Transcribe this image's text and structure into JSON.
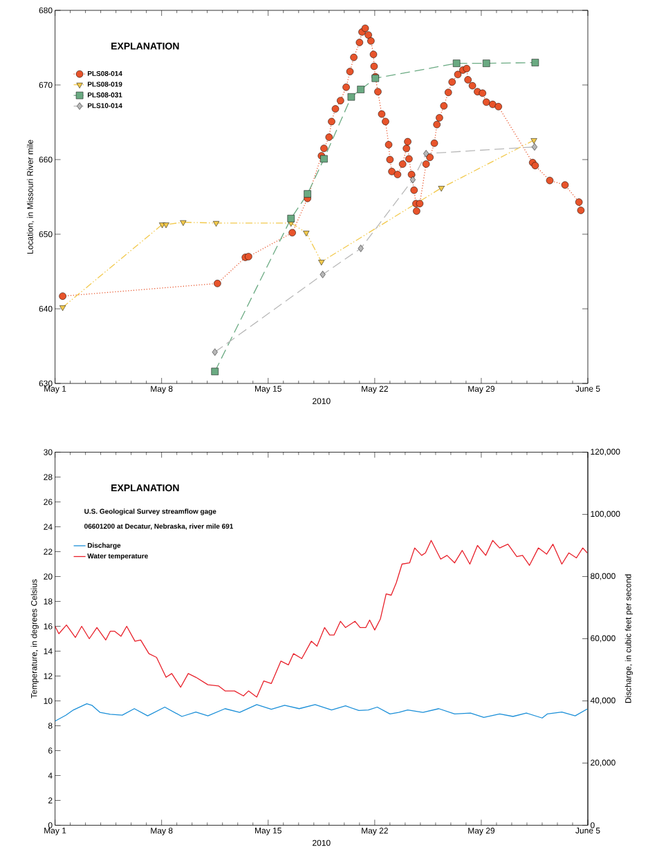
{
  "chart_data": [
    {
      "type": "line",
      "xlabel": "2010",
      "ylabel": "Location, in Missouri River mile",
      "legend_title": "EXPLANATION",
      "legend": "top left",
      "xlim": [
        "2010-05-01",
        "2010-06-05"
      ],
      "ylim": [
        630,
        680
      ],
      "yticks": [
        630,
        640,
        650,
        660,
        670,
        680
      ],
      "xticks": [
        {
          "value": "2010-05-01",
          "label": "May 1"
        },
        {
          "value": "2010-05-02",
          "label": null
        },
        {
          "value": "2010-05-03",
          "label": null
        },
        {
          "value": "2010-05-04",
          "label": null
        },
        {
          "value": "2010-05-05",
          "label": null
        },
        {
          "value": "2010-05-06",
          "label": null
        },
        {
          "value": "2010-05-07",
          "label": null
        },
        {
          "value": "2010-05-08",
          "label": "May 8"
        },
        {
          "value": "2010-05-09",
          "label": null
        },
        {
          "value": "2010-05-10",
          "label": null
        },
        {
          "value": "2010-05-11",
          "label": null
        },
        {
          "value": "2010-05-12",
          "label": null
        },
        {
          "value": "2010-05-13",
          "label": null
        },
        {
          "value": "2010-05-14",
          "label": null
        },
        {
          "value": "2010-05-15",
          "label": "May 15"
        },
        {
          "value": "2010-05-16",
          "label": null
        },
        {
          "value": "2010-05-17",
          "label": null
        },
        {
          "value": "2010-05-18",
          "label": null
        },
        {
          "value": "2010-05-19",
          "label": null
        },
        {
          "value": "2010-05-20",
          "label": null
        },
        {
          "value": "2010-05-21",
          "label": null
        },
        {
          "value": "2010-05-22",
          "label": "May 22"
        },
        {
          "value": "2010-05-23",
          "label": null
        },
        {
          "value": "2010-05-24",
          "label": null
        },
        {
          "value": "2010-05-25",
          "label": null
        },
        {
          "value": "2010-05-26",
          "label": null
        },
        {
          "value": "2010-05-27",
          "label": null
        },
        {
          "value": "2010-05-28",
          "label": null
        },
        {
          "value": "2010-05-29",
          "label": "May 29"
        },
        {
          "value": "2010-05-30",
          "label": null
        },
        {
          "value": "2010-05-31",
          "label": null
        },
        {
          "value": "2010-06-01",
          "label": null
        },
        {
          "value": "2010-06-02",
          "label": null
        },
        {
          "value": "2010-06-03",
          "label": null
        },
        {
          "value": "2010-06-04",
          "label": null
        },
        {
          "value": "2010-06-05",
          "label": "June 5"
        }
      ],
      "series": [
        {
          "name": "PLS08-014",
          "color": "#e8542b",
          "marker": "circle",
          "line_style": "dotted",
          "x": [
            "2010-05-01T12:00",
            "2010-05-11T16:00",
            "2010-05-13T12:00",
            "2010-05-13T17:00",
            "2010-05-16T14:00",
            "2010-05-17T14:00",
            "2010-05-18T12:00",
            "2010-05-18T16:00",
            "2010-05-19T00:00",
            "2010-05-19T04:00",
            "2010-05-19T10:00",
            "2010-05-19T18:00",
            "2010-05-20T03:00",
            "2010-05-20T09:00",
            "2010-05-20T15:00",
            "2010-05-21T00:00",
            "2010-05-21T04:00",
            "2010-05-21T09:00",
            "2010-05-21T14:00",
            "2010-05-21T18:00",
            "2010-05-21T22:00",
            "2010-05-21T23:00",
            "2010-05-22T01:00",
            "2010-05-22T05:00",
            "2010-05-22T11:00",
            "2010-05-22T17:00",
            "2010-05-22T22:00",
            "2010-05-23T00:00",
            "2010-05-23T03:00",
            "2010-05-23T12:00",
            "2010-05-23T20:00",
            "2010-05-24T02:00",
            "2010-05-24T04:00",
            "2010-05-24T06:00",
            "2010-05-24T10:00",
            "2010-05-24T14:00",
            "2010-05-24T17:00",
            "2010-05-24T18:00",
            "2010-05-24T23:00",
            "2010-05-25T09:00",
            "2010-05-25T15:00",
            "2010-05-25T22:00",
            "2010-05-26T02:00",
            "2010-05-26T06:00",
            "2010-05-26T13:00",
            "2010-05-26T20:00",
            "2010-05-27T02:00",
            "2010-05-27T11:00",
            "2010-05-27T19:00",
            "2010-05-28T01:00",
            "2010-05-28T03:00",
            "2010-05-28T10:00",
            "2010-05-28T18:00",
            "2010-05-29T02:00",
            "2010-05-29T08:00",
            "2010-05-29T18:00",
            "2010-05-30T03:00",
            "2010-06-01T09:00",
            "2010-06-01T13:00",
            "2010-06-02T12:00",
            "2010-06-03T12:00",
            "2010-06-04T10:00",
            "2010-06-04T13:00"
          ],
          "values": [
            641.7,
            643.4,
            646.9,
            647.0,
            650.2,
            654.8,
            660.5,
            661.5,
            663.0,
            665.1,
            666.8,
            667.9,
            669.7,
            671.8,
            673.7,
            675.7,
            677.1,
            677.6,
            676.7,
            675.9,
            674.1,
            672.5,
            671.1,
            669.1,
            666.1,
            665.1,
            662.0,
            660.0,
            658.4,
            658.0,
            659.4,
            661.5,
            662.4,
            660.1,
            658.0,
            655.9,
            654.1,
            653.1,
            654.1,
            659.4,
            660.3,
            662.2,
            664.7,
            665.6,
            667.2,
            669.0,
            670.4,
            671.4,
            672.0,
            672.2,
            670.7,
            669.9,
            669.1,
            668.9,
            667.7,
            667.4,
            667.1,
            659.6,
            659.2,
            657.2,
            656.6,
            654.3,
            653.2
          ]
        },
        {
          "name": "PLS08-019",
          "color": "#f2c94c",
          "marker": "triangle",
          "line_style": "dashdot",
          "x": [
            "2010-05-01T12:00",
            "2010-05-08T01:00",
            "2010-05-08T07:00",
            "2010-05-09T10:00",
            "2010-05-11T14:00",
            "2010-05-16T12:00",
            "2010-05-17T12:00",
            "2010-05-18T12:00",
            "2010-05-26T09:00",
            "2010-06-01T11:00"
          ],
          "values": [
            640.2,
            651.3,
            651.3,
            651.6,
            651.5,
            651.5,
            650.2,
            646.3,
            656.2,
            662.6
          ]
        },
        {
          "name": "PLS08-031",
          "color": "#6aaa82",
          "marker": "square",
          "line_style": "dashed",
          "x": [
            "2010-05-11T12:00",
            "2010-05-16T12:00",
            "2010-05-17T14:00",
            "2010-05-18T16:00",
            "2010-05-20T11:00",
            "2010-05-21T02:00",
            "2010-05-22T01:00",
            "2010-05-27T09:00",
            "2010-05-29T08:00",
            "2010-06-01T13:00"
          ],
          "values": [
            631.6,
            652.1,
            655.4,
            660.1,
            668.4,
            669.4,
            670.9,
            672.9,
            672.9,
            673.0
          ]
        },
        {
          "name": "PLS10-014",
          "color": "#b8b8b8",
          "marker": "diamond",
          "line_style": "dashed",
          "x": [
            "2010-05-11T12:00",
            "2010-05-18T14:00",
            "2010-05-21T02:00",
            "2010-05-24T12:00",
            "2010-05-25T09:00",
            "2010-06-01T12:00"
          ],
          "values": [
            634.2,
            644.6,
            648.1,
            657.3,
            660.8,
            661.7
          ]
        }
      ]
    },
    {
      "type": "line",
      "xlabel": "2010",
      "ylabel": "Temperature, in degrees Celsius",
      "y2label": "Discharge, in cubic feet per second",
      "legend_title": "EXPLANATION",
      "legend": "top left",
      "annotations": [
        "U.S. Geological Survey streamflow gage",
        "06601200 at Decatur, Nebraska, river mile 691"
      ],
      "xlim": [
        "2010-05-01",
        "2010-06-05"
      ],
      "ylim": [
        0,
        30
      ],
      "yticks": [
        0,
        2,
        4,
        6,
        8,
        10,
        12,
        14,
        16,
        18,
        20,
        22,
        24,
        26,
        28,
        30
      ],
      "y2lim": [
        0,
        120000
      ],
      "y2ticks": [
        0,
        {
          "value": 20000,
          "label": "20,000"
        },
        {
          "value": 40000,
          "label": "40,000"
        },
        {
          "value": 60000,
          "label": "60,000"
        },
        {
          "value": 80000,
          "label": "80,000"
        },
        {
          "value": 100000,
          "label": "100,000"
        },
        {
          "value": 120000,
          "label": "120,000"
        }
      ],
      "xticks": [
        {
          "value": "2010-05-01",
          "label": "May 1"
        },
        {
          "value": "2010-05-02",
          "label": null
        },
        {
          "value": "2010-05-03",
          "label": null
        },
        {
          "value": "2010-05-04",
          "label": null
        },
        {
          "value": "2010-05-05",
          "label": null
        },
        {
          "value": "2010-05-06",
          "label": null
        },
        {
          "value": "2010-05-07",
          "label": null
        },
        {
          "value": "2010-05-08",
          "label": "May 8"
        },
        {
          "value": "2010-05-09",
          "label": null
        },
        {
          "value": "2010-05-10",
          "label": null
        },
        {
          "value": "2010-05-11",
          "label": null
        },
        {
          "value": "2010-05-12",
          "label": null
        },
        {
          "value": "2010-05-13",
          "label": null
        },
        {
          "value": "2010-05-14",
          "label": null
        },
        {
          "value": "2010-05-15",
          "label": "May 15"
        },
        {
          "value": "2010-05-16",
          "label": null
        },
        {
          "value": "2010-05-17",
          "label": null
        },
        {
          "value": "2010-05-18",
          "label": null
        },
        {
          "value": "2010-05-19",
          "label": null
        },
        {
          "value": "2010-05-20",
          "label": null
        },
        {
          "value": "2010-05-21",
          "label": null
        },
        {
          "value": "2010-05-22",
          "label": "May 22"
        },
        {
          "value": "2010-05-23",
          "label": null
        },
        {
          "value": "2010-05-24",
          "label": null
        },
        {
          "value": "2010-05-25",
          "label": null
        },
        {
          "value": "2010-05-26",
          "label": null
        },
        {
          "value": "2010-05-27",
          "label": null
        },
        {
          "value": "2010-05-28",
          "label": null
        },
        {
          "value": "2010-05-29",
          "label": "May 29"
        },
        {
          "value": "2010-05-30",
          "label": null
        },
        {
          "value": "2010-05-31",
          "label": null
        },
        {
          "value": "2010-06-01",
          "label": null
        },
        {
          "value": "2010-06-02",
          "label": null
        },
        {
          "value": "2010-06-03",
          "label": null
        },
        {
          "value": "2010-06-04",
          "label": null
        },
        {
          "value": "2010-06-05",
          "label": "June 5"
        }
      ],
      "series": [
        {
          "name": "Discharge",
          "color": "#1b8fd8",
          "axis": "y2",
          "x": [
            "2010-05-01T00:00",
            "2010-05-01T17:00",
            "2010-05-02T05:00",
            "2010-05-03T02:00",
            "2010-05-03T10:00",
            "2010-05-03T23:00",
            "2010-05-04T15:00",
            "2010-05-05T10:00",
            "2010-05-06T05:00",
            "2010-05-07T02:00",
            "2010-05-08T05:00",
            "2010-05-09T08:00",
            "2010-05-10T06:00",
            "2010-05-11T01:00",
            "2010-05-12T04:00",
            "2010-05-13T03:00",
            "2010-05-14T06:00",
            "2010-05-15T05:00",
            "2010-05-16T02:00",
            "2010-05-17T01:00",
            "2010-05-18T02:00",
            "2010-05-19T04:00",
            "2010-05-20T02:00",
            "2010-05-20T23:00",
            "2010-05-21T14:00",
            "2010-05-22T04:00",
            "2010-05-23T00:00",
            "2010-05-23T14:00",
            "2010-05-24T04:00",
            "2010-05-25T04:00",
            "2010-05-26T05:00",
            "2010-05-27T06:00",
            "2010-05-28T07:00",
            "2010-05-29T04:00",
            "2010-05-30T05:00",
            "2010-05-31T02:00",
            "2010-05-31T23:00",
            "2010-06-02T00:00",
            "2010-06-02T08:00",
            "2010-06-03T07:00",
            "2010-06-04T04:00",
            "2010-06-04T23:00"
          ],
          "values": [
            33500,
            35400,
            37100,
            39100,
            38600,
            36300,
            35700,
            35400,
            37500,
            35200,
            38000,
            35000,
            36400,
            35200,
            37500,
            36300,
            38800,
            37300,
            38600,
            37500,
            38800,
            37100,
            38400,
            36900,
            37100,
            38000,
            35800,
            36300,
            37100,
            36300,
            37500,
            35800,
            36100,
            34700,
            35800,
            35000,
            36100,
            34500,
            35800,
            36400,
            35200,
            37400
          ]
        },
        {
          "name": "Water temperature",
          "color": "#e8202a",
          "x": [
            "2010-05-01T00:00",
            "2010-05-01T06:00",
            "2010-05-01T18:00",
            "2010-05-02T08:00",
            "2010-05-02T18:00",
            "2010-05-03T06:00",
            "2010-05-03T18:00",
            "2010-05-04T08:00",
            "2010-05-04T15:00",
            "2010-05-04T22:00",
            "2010-05-05T08:00",
            "2010-05-05T17:00",
            "2010-05-06T06:00",
            "2010-05-06T15:00",
            "2010-05-07T04:00",
            "2010-05-07T16:00",
            "2010-05-08T07:00",
            "2010-05-08T16:00",
            "2010-05-09T06:00",
            "2010-05-09T18:00",
            "2010-05-10T06:00",
            "2010-05-11T01:00",
            "2010-05-11T18:00",
            "2010-05-12T04:00",
            "2010-05-12T19:00",
            "2010-05-13T09:00",
            "2010-05-13T17:00",
            "2010-05-14T06:00",
            "2010-05-14T17:00",
            "2010-05-15T05:00",
            "2010-05-15T20:00",
            "2010-05-16T08:00",
            "2010-05-16T16:00",
            "2010-05-17T05:00",
            "2010-05-17T20:00",
            "2010-05-18T05:00",
            "2010-05-18T17:00",
            "2010-05-19T01:00",
            "2010-05-19T08:00",
            "2010-05-19T18:00",
            "2010-05-20T02:00",
            "2010-05-20T17:00",
            "2010-05-21T01:00",
            "2010-05-21T10:00",
            "2010-05-21T16:00",
            "2010-05-22T00:00",
            "2010-05-22T09:00",
            "2010-05-22T18:00",
            "2010-05-23T02:00",
            "2010-05-23T10:00",
            "2010-05-23T19:00",
            "2010-05-24T07:00",
            "2010-05-24T15:00",
            "2010-05-25T02:00",
            "2010-05-25T08:00",
            "2010-05-25T17:00",
            "2010-05-26T08:00",
            "2010-05-26T18:00",
            "2010-05-27T06:00",
            "2010-05-27T18:00",
            "2010-05-28T06:00",
            "2010-05-28T18:00",
            "2010-05-29T07:00",
            "2010-05-29T18:00",
            "2010-05-30T05:00",
            "2010-05-30T18:00",
            "2010-05-31T08:00",
            "2010-05-31T17:00",
            "2010-06-01T04:00",
            "2010-06-01T18:00",
            "2010-06-02T07:00",
            "2010-06-02T17:00",
            "2010-06-03T07:00",
            "2010-06-03T18:00",
            "2010-06-04T06:00",
            "2010-06-04T16:00",
            "2010-06-04T23:00"
          ],
          "values": [
            16.0,
            15.4,
            16.1,
            15.1,
            16.0,
            15.0,
            15.9,
            14.9,
            15.6,
            15.6,
            15.2,
            16.0,
            14.8,
            14.9,
            13.8,
            13.5,
            11.9,
            12.2,
            11.1,
            12.2,
            11.9,
            11.3,
            11.2,
            10.8,
            10.8,
            10.4,
            10.8,
            10.3,
            11.6,
            11.4,
            13.2,
            12.9,
            13.8,
            13.4,
            14.8,
            14.4,
            15.9,
            15.3,
            15.3,
            16.4,
            15.9,
            16.4,
            15.9,
            15.9,
            16.5,
            15.7,
            16.6,
            18.6,
            18.5,
            19.5,
            21.0,
            21.1,
            22.3,
            21.7,
            21.9,
            22.9,
            21.4,
            21.7,
            21.1,
            22.1,
            21.0,
            22.5,
            21.7,
            22.9,
            22.3,
            22.6,
            21.6,
            21.7,
            20.9,
            22.3,
            21.8,
            22.6,
            21.0,
            21.9,
            21.5,
            22.3,
            21.9
          ]
        }
      ]
    }
  ]
}
